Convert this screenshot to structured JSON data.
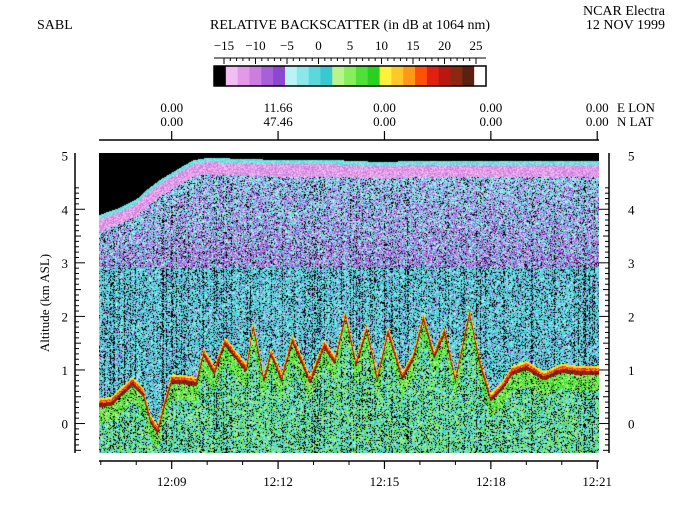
{
  "header": {
    "left_label": "SABL",
    "title": "RELATIVE BACKSCATTER (in dB at 1064 nm)",
    "org": "NCAR Electra",
    "date": "12 NOV 1999"
  },
  "colorbar": {
    "ticks": [
      "−15",
      "−10",
      "−5",
      "0",
      "5",
      "10",
      "15",
      "20",
      "25"
    ],
    "tick_values": [
      -15,
      -10,
      -5,
      0,
      5,
      10,
      15,
      20,
      25
    ],
    "colors": [
      "#000000",
      "#f2bdf2",
      "#e29ae6",
      "#cc7ee0",
      "#a860d8",
      "#8a48d0",
      "#b8f4f4",
      "#8ce8e8",
      "#5cd8dc",
      "#38c8d0",
      "#b8f48c",
      "#88ee5c",
      "#50e03a",
      "#28d020",
      "#fff03a",
      "#ffc828",
      "#ff9818",
      "#ff5008",
      "#e02010",
      "#b81810",
      "#8c2810",
      "#5a2010",
      "#ffffff"
    ]
  },
  "geo": {
    "lon_label": "E  LON",
    "lat_label": "N  LAT",
    "lon": [
      "0.00",
      "11.66",
      "0.00",
      "0.00",
      "0.00"
    ],
    "lat": [
      "0.00",
      "47.46",
      "0.00",
      "0.00",
      "0.00"
    ]
  },
  "chart_data": {
    "type": "heatmap",
    "title": "RELATIVE BACKSCATTER (in dB at 1064 nm)",
    "xlabel": "",
    "ylabel": "Altitude (km ASL)",
    "x_ticks": [
      "12:09",
      "12:12",
      "12:15",
      "12:18",
      "12:21"
    ],
    "x_tick_minutes": [
      9,
      12,
      15,
      18,
      21
    ],
    "xlim_minutes": [
      6.95,
      21.05
    ],
    "y_ticks": [
      0,
      1,
      2,
      3,
      4,
      5
    ],
    "ylim": [
      -0.55,
      5.05
    ],
    "colorscale_db": [
      -15,
      25
    ],
    "aircraft_altitude_km": {
      "minutes": [
        6.95,
        7.5,
        8.0,
        8.3,
        8.7,
        9.2,
        9.6,
        10.0,
        12.0,
        13.5,
        14.2,
        15.0,
        16.0,
        18.0,
        21.05
      ],
      "altitude": [
        3.83,
        3.96,
        4.12,
        4.3,
        4.5,
        4.7,
        4.85,
        4.9,
        4.86,
        4.86,
        4.84,
        4.82,
        4.85,
        4.85,
        4.85
      ]
    },
    "aerosol_layer_top_km": {
      "minutes": [
        6.95,
        7.3,
        7.9,
        8.2,
        8.4,
        8.6,
        8.8,
        9.0,
        9.4,
        9.7,
        9.9,
        10.2,
        10.5,
        10.8,
        11.1,
        11.3,
        11.6,
        11.8,
        12.1,
        12.4,
        12.7,
        12.9,
        13.3,
        13.6,
        13.9,
        14.2,
        14.5,
        14.8,
        15.1,
        15.5,
        15.8,
        16.1,
        16.4,
        16.7,
        17.0,
        17.4,
        17.7,
        18.0,
        18.3,
        18.6,
        19.0,
        19.5,
        20.0,
        20.5,
        21.05
      ],
      "altitude": [
        0.35,
        0.38,
        0.75,
        0.55,
        0.05,
        -0.15,
        0.35,
        0.8,
        0.78,
        0.75,
        1.3,
        0.95,
        1.5,
        1.25,
        1.0,
        1.8,
        0.8,
        1.3,
        0.82,
        1.55,
        1.1,
        0.78,
        1.45,
        1.15,
        2.0,
        1.1,
        1.75,
        0.82,
        1.7,
        0.85,
        1.2,
        1.95,
        1.25,
        1.7,
        0.8,
        2.05,
        1.1,
        0.45,
        0.65,
        0.95,
        1.05,
        0.85,
        1.0,
        0.95,
        0.95
      ]
    }
  }
}
